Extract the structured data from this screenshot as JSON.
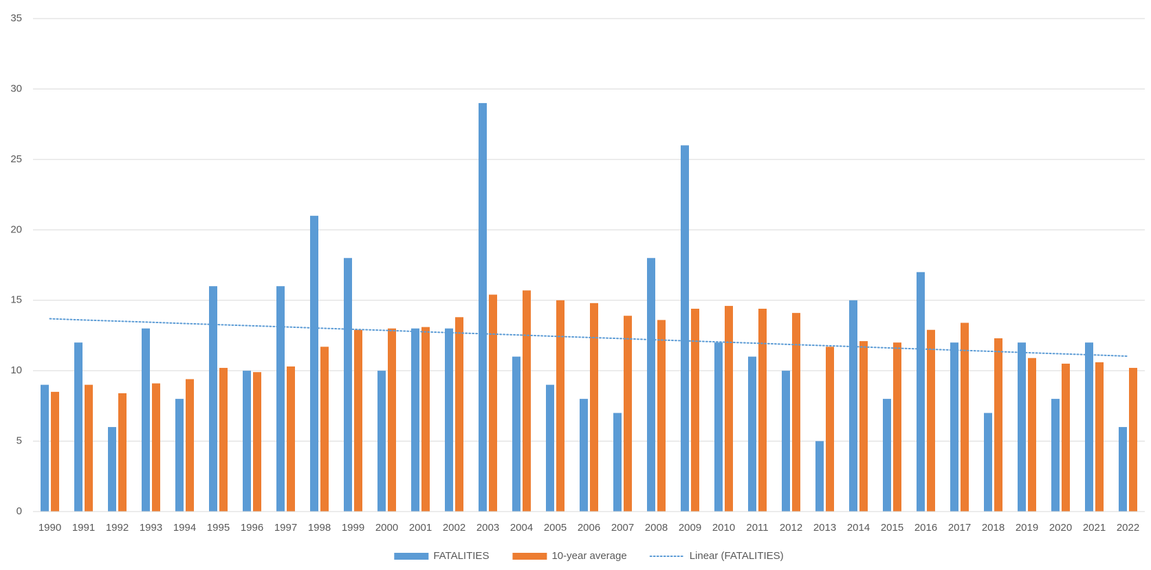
{
  "chart_data": {
    "type": "bar",
    "categories": [
      "1990",
      "1991",
      "1992",
      "1993",
      "1994",
      "1995",
      "1996",
      "1997",
      "1998",
      "1999",
      "2000",
      "2001",
      "2002",
      "2003",
      "2004",
      "2005",
      "2006",
      "2007",
      "2008",
      "2009",
      "2010",
      "2011",
      "2012",
      "2013",
      "2014",
      "2015",
      "2016",
      "2017",
      "2018",
      "2019",
      "2020",
      "2021",
      "2022"
    ],
    "series": [
      {
        "name": "FATALITIES",
        "color": "#5b9bd5",
        "values": [
          9,
          12,
          6,
          13,
          8,
          16,
          10,
          16,
          21,
          18,
          10,
          13,
          13,
          29,
          11,
          9,
          8,
          7,
          18,
          26,
          12,
          11,
          10,
          5,
          15,
          8,
          17,
          12,
          7,
          12,
          8,
          12,
          6
        ]
      },
      {
        "name": "10-year average",
        "color": "#ed7d31",
        "values": [
          8.5,
          9,
          8.4,
          9.1,
          9.4,
          10.2,
          9.9,
          10.3,
          11.7,
          12.9,
          13,
          13.1,
          13.8,
          15.4,
          15.7,
          15,
          14.8,
          13.9,
          13.6,
          14.4,
          14.6,
          14.4,
          14.1,
          11.7,
          12.1,
          12,
          12.9,
          13.4,
          12.3,
          10.9,
          10.5,
          10.6,
          10.2
        ]
      },
      {
        "name": "Linear (FATALITIES)",
        "color": "#5b9bd5",
        "type": "line",
        "dash": "dotted",
        "values": [
          13.69,
          13.6,
          13.52,
          13.44,
          13.35,
          13.27,
          13.19,
          13.11,
          13.02,
          12.94,
          12.86,
          12.77,
          12.69,
          12.61,
          12.53,
          12.44,
          12.36,
          12.28,
          12.19,
          12.11,
          12.03,
          11.95,
          11.86,
          11.78,
          11.7,
          11.61,
          11.53,
          11.45,
          11.37,
          11.28,
          11.2,
          11.12,
          11.03
        ]
      }
    ],
    "ylim": [
      0,
      35
    ],
    "yticks": [
      0,
      5,
      10,
      15,
      20,
      25,
      30,
      35
    ],
    "grid": true,
    "legend": "bottom"
  }
}
